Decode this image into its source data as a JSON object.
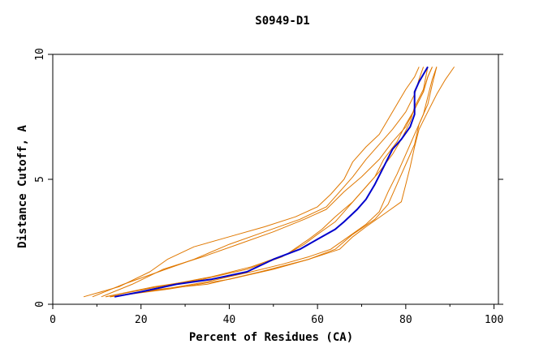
{
  "chart_data": {
    "type": "line",
    "title": "S0949-D1",
    "xlabel": "Percent of Residues (CA)",
    "ylabel": "Distance Cutoff, A",
    "xlim": [
      0,
      101
    ],
    "ylim": [
      0,
      10
    ],
    "x_ticks": [
      "0",
      "20",
      "40",
      "60",
      "80",
      "100"
    ],
    "y_ticks": [
      "0",
      "5",
      "10"
    ],
    "grid": false,
    "colors": {
      "highlight": "#0000cc",
      "others": "#e07800",
      "axes": "#000000"
    },
    "series": [
      {
        "highlight": false,
        "points": [
          [
            7,
            0.3
          ],
          [
            15,
            0.7
          ],
          [
            22,
            1.3
          ],
          [
            26,
            1.8
          ],
          [
            32,
            2.3
          ],
          [
            40,
            2.7
          ],
          [
            48,
            3.1
          ],
          [
            55,
            3.5
          ],
          [
            60,
            3.9
          ],
          [
            63,
            4.4
          ],
          [
            66,
            5.0
          ],
          [
            68,
            5.7
          ],
          [
            71,
            6.3
          ],
          [
            74,
            6.8
          ],
          [
            76,
            7.4
          ],
          [
            78,
            8.0
          ],
          [
            80,
            8.6
          ],
          [
            82,
            9.1
          ],
          [
            83,
            9.5
          ]
        ]
      },
      {
        "highlight": false,
        "points": [
          [
            9,
            0.3
          ],
          [
            16,
            0.8
          ],
          [
            24,
            1.3
          ],
          [
            32,
            1.8
          ],
          [
            40,
            2.4
          ],
          [
            48,
            2.9
          ],
          [
            56,
            3.4
          ],
          [
            62,
            3.9
          ],
          [
            65,
            4.5
          ],
          [
            68,
            5.1
          ],
          [
            71,
            5.8
          ],
          [
            74,
            6.4
          ],
          [
            77,
            7.0
          ],
          [
            80,
            7.7
          ],
          [
            82,
            8.4
          ],
          [
            83,
            9.0
          ],
          [
            84,
            9.5
          ]
        ]
      },
      {
        "highlight": false,
        "points": [
          [
            11,
            0.3
          ],
          [
            18,
            0.8
          ],
          [
            25,
            1.4
          ],
          [
            34,
            1.9
          ],
          [
            42,
            2.4
          ],
          [
            50,
            2.9
          ],
          [
            57,
            3.4
          ],
          [
            62,
            3.8
          ],
          [
            66,
            4.5
          ],
          [
            70,
            5.1
          ],
          [
            74,
            5.8
          ],
          [
            77,
            6.5
          ],
          [
            80,
            7.1
          ],
          [
            82,
            7.8
          ],
          [
            84,
            8.5
          ],
          [
            85,
            9.1
          ],
          [
            86,
            9.5
          ]
        ]
      },
      {
        "highlight": false,
        "points": [
          [
            13,
            0.3
          ],
          [
            25,
            0.6
          ],
          [
            35,
            0.9
          ],
          [
            45,
            1.3
          ],
          [
            52,
            1.6
          ],
          [
            58,
            1.9
          ],
          [
            63,
            2.2
          ],
          [
            67,
            2.7
          ],
          [
            71,
            3.2
          ],
          [
            74,
            3.7
          ],
          [
            76,
            4.5
          ],
          [
            78,
            5.2
          ],
          [
            80,
            6.0
          ],
          [
            82,
            6.8
          ],
          [
            84,
            7.6
          ],
          [
            85,
            8.3
          ],
          [
            86,
            9.0
          ],
          [
            87,
            9.5
          ]
        ]
      },
      {
        "highlight": false,
        "points": [
          [
            13,
            0.3
          ],
          [
            24,
            0.6
          ],
          [
            35,
            0.8
          ],
          [
            47,
            1.3
          ],
          [
            58,
            1.8
          ],
          [
            64,
            2.2
          ],
          [
            68,
            2.8
          ],
          [
            73,
            3.4
          ],
          [
            76,
            4.0
          ],
          [
            78,
            4.8
          ],
          [
            80,
            5.6
          ],
          [
            82,
            6.4
          ],
          [
            83,
            7.2
          ],
          [
            85,
            8.0
          ],
          [
            86,
            8.8
          ],
          [
            87,
            9.5
          ]
        ]
      },
      {
        "highlight": false,
        "points": [
          [
            12,
            0.3
          ],
          [
            23,
            0.7
          ],
          [
            34,
            1.0
          ],
          [
            44,
            1.4
          ],
          [
            52,
            1.9
          ],
          [
            57,
            2.4
          ],
          [
            60,
            2.8
          ],
          [
            64,
            3.3
          ],
          [
            67,
            3.9
          ],
          [
            70,
            4.5
          ],
          [
            73,
            5.1
          ],
          [
            75,
            5.8
          ],
          [
            78,
            6.5
          ],
          [
            80,
            7.2
          ],
          [
            82,
            7.8
          ],
          [
            84,
            8.5
          ],
          [
            85,
            9.1
          ],
          [
            86,
            9.5
          ]
        ]
      },
      {
        "highlight": false,
        "points": [
          [
            12,
            0.3
          ],
          [
            24,
            0.7
          ],
          [
            36,
            1.1
          ],
          [
            45,
            1.5
          ],
          [
            53,
            2.0
          ],
          [
            58,
            2.6
          ],
          [
            61,
            3.0
          ],
          [
            64,
            3.5
          ],
          [
            68,
            4.1
          ],
          [
            71,
            4.7
          ],
          [
            74,
            5.3
          ],
          [
            77,
            6.0
          ],
          [
            79,
            6.6
          ],
          [
            81,
            7.3
          ],
          [
            82,
            7.9
          ],
          [
            84,
            8.6
          ],
          [
            85,
            9.5
          ]
        ]
      },
      {
        "highlight": false,
        "points": [
          [
            13,
            0.3
          ],
          [
            26,
            0.6
          ],
          [
            40,
            1.0
          ],
          [
            50,
            1.4
          ],
          [
            58,
            1.8
          ],
          [
            65,
            2.2
          ],
          [
            68,
            2.7
          ],
          [
            71,
            3.1
          ],
          [
            75,
            3.6
          ],
          [
            79,
            4.1
          ],
          [
            80,
            4.8
          ],
          [
            81,
            5.5
          ],
          [
            82,
            6.3
          ],
          [
            83,
            7.0
          ],
          [
            85,
            7.7
          ],
          [
            87,
            8.4
          ],
          [
            89,
            9.0
          ],
          [
            91,
            9.5
          ]
        ]
      },
      {
        "highlight": true,
        "points": [
          [
            14,
            0.3
          ],
          [
            20,
            0.5
          ],
          [
            28,
            0.8
          ],
          [
            36,
            1.0
          ],
          [
            44,
            1.3
          ],
          [
            50,
            1.8
          ],
          [
            56,
            2.2
          ],
          [
            60,
            2.6
          ],
          [
            64,
            3.0
          ],
          [
            66,
            3.3
          ],
          [
            69,
            3.8
          ],
          [
            71,
            4.2
          ],
          [
            73,
            4.8
          ],
          [
            75,
            5.5
          ],
          [
            77,
            6.2
          ],
          [
            79,
            6.6
          ],
          [
            81,
            7.1
          ],
          [
            82,
            7.6
          ],
          [
            82,
            8.2
          ],
          [
            82,
            8.5
          ],
          [
            83,
            8.9
          ],
          [
            84,
            9.2
          ],
          [
            85,
            9.5
          ]
        ]
      }
    ]
  }
}
